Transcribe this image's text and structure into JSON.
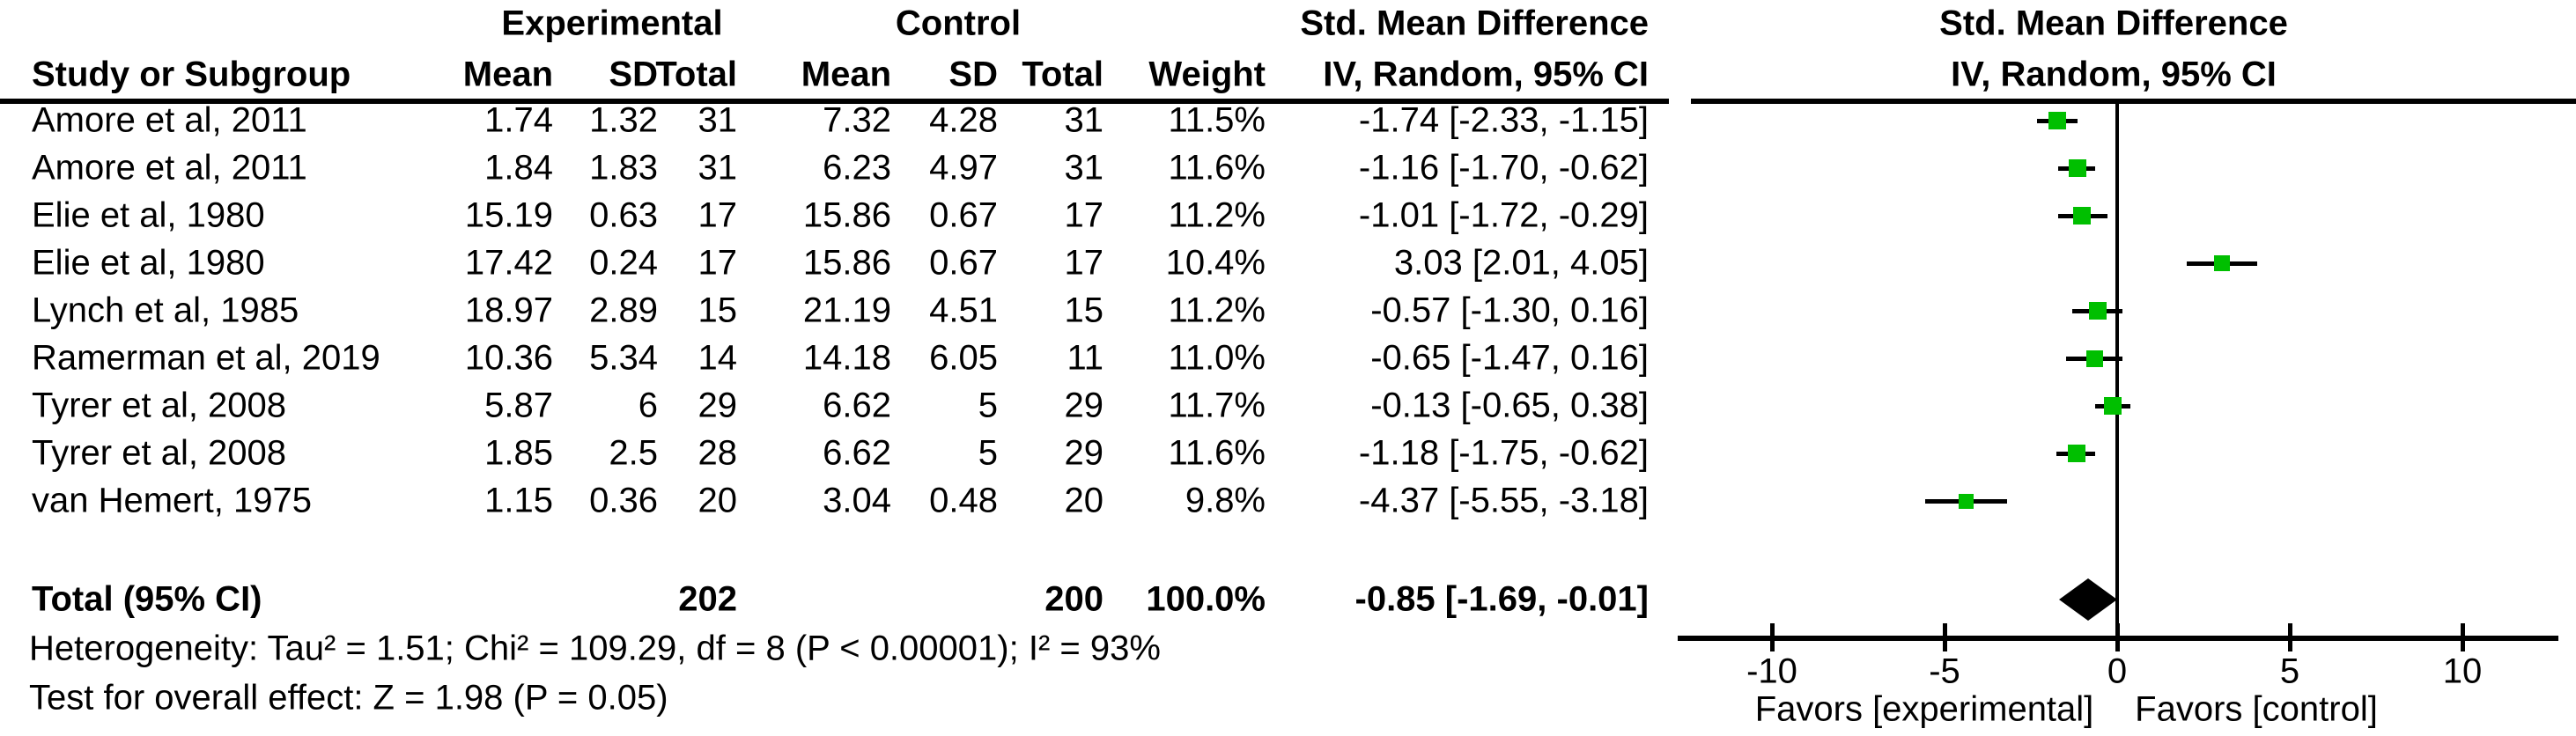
{
  "header": {
    "group_experimental": "Experimental",
    "group_control": "Control",
    "smd_table_title": "Std. Mean Difference",
    "smd_plot_title": "Std. Mean Difference",
    "study_or_subgroup": "Study or Subgroup",
    "exp_mean": "Mean",
    "exp_sd": "SD",
    "exp_total": "Total",
    "ctl_mean": "Mean",
    "ctl_sd": "SD",
    "ctl_total": "Total",
    "weight": "Weight",
    "iv_table": "IV, Random, 95% CI",
    "iv_plot": "IV, Random, 95% CI"
  },
  "chart_data": {
    "type": "forest",
    "effect_measure": "Std. Mean Difference",
    "model": "IV, Random, 95% CI",
    "studies": [
      {
        "name": "Amore et al, 2011",
        "mean_e": "1.74",
        "sd_e": "1.32",
        "n_e": "31",
        "mean_c": "7.32",
        "sd_c": "4.28",
        "n_c": "31",
        "weight": "11.5%",
        "w": 11.5,
        "ci": "-1.74 [-2.33, -1.15]",
        "est": -1.74,
        "lo": -2.33,
        "hi": -1.15
      },
      {
        "name": "Amore et al, 2011",
        "mean_e": "1.84",
        "sd_e": "1.83",
        "n_e": "31",
        "mean_c": "6.23",
        "sd_c": "4.97",
        "n_c": "31",
        "weight": "11.6%",
        "w": 11.6,
        "ci": "-1.16 [-1.70, -0.62]",
        "est": -1.16,
        "lo": -1.7,
        "hi": -0.62
      },
      {
        "name": "Elie et al, 1980",
        "mean_e": "15.19",
        "sd_e": "0.63",
        "n_e": "17",
        "mean_c": "15.86",
        "sd_c": "0.67",
        "n_c": "17",
        "weight": "11.2%",
        "w": 11.2,
        "ci": "-1.01 [-1.72, -0.29]",
        "est": -1.01,
        "lo": -1.72,
        "hi": -0.29
      },
      {
        "name": "Elie et al, 1980",
        "mean_e": "17.42",
        "sd_e": "0.24",
        "n_e": "17",
        "mean_c": "15.86",
        "sd_c": "0.67",
        "n_c": "17",
        "weight": "10.4%",
        "w": 10.4,
        "ci": "3.03 [2.01, 4.05]",
        "est": 3.03,
        "lo": 2.01,
        "hi": 4.05
      },
      {
        "name": "Lynch et al, 1985",
        "mean_e": "18.97",
        "sd_e": "2.89",
        "n_e": "15",
        "mean_c": "21.19",
        "sd_c": "4.51",
        "n_c": "15",
        "weight": "11.2%",
        "w": 11.2,
        "ci": "-0.57 [-1.30, 0.16]",
        "est": -0.57,
        "lo": -1.3,
        "hi": 0.16
      },
      {
        "name": "Ramerman et al, 2019",
        "mean_e": "10.36",
        "sd_e": "5.34",
        "n_e": "14",
        "mean_c": "14.18",
        "sd_c": "6.05",
        "n_c": "11",
        "weight": "11.0%",
        "w": 11.0,
        "ci": "-0.65 [-1.47, 0.16]",
        "est": -0.65,
        "lo": -1.47,
        "hi": 0.16
      },
      {
        "name": "Tyrer et al, 2008",
        "mean_e": "5.87",
        "sd_e": "6",
        "n_e": "29",
        "mean_c": "6.62",
        "sd_c": "5",
        "n_c": "29",
        "weight": "11.7%",
        "w": 11.7,
        "ci": "-0.13 [-0.65, 0.38]",
        "est": -0.13,
        "lo": -0.65,
        "hi": 0.38
      },
      {
        "name": "Tyrer et al, 2008",
        "mean_e": "1.85",
        "sd_e": "2.5",
        "n_e": "28",
        "mean_c": "6.62",
        "sd_c": "5",
        "n_c": "29",
        "weight": "11.6%",
        "w": 11.6,
        "ci": "-1.18 [-1.75, -0.62]",
        "est": -1.18,
        "lo": -1.75,
        "hi": -0.62
      },
      {
        "name": "van Hemert, 1975",
        "mean_e": "1.15",
        "sd_e": "0.36",
        "n_e": "20",
        "mean_c": "3.04",
        "sd_c": "0.48",
        "n_c": "20",
        "weight": "9.8%",
        "w": 9.8,
        "ci": "-4.37 [-5.55, -3.18]",
        "est": -4.37,
        "lo": -5.55,
        "hi": -3.18
      }
    ],
    "total": {
      "label": "Total (95% CI)",
      "n_e": "202",
      "n_c": "200",
      "weight": "100.0%",
      "ci": "-0.85 [-1.69, -0.01]",
      "est": -0.85,
      "lo": -1.69,
      "hi": -0.01
    },
    "heterogeneity": "Heterogeneity: Tau² = 1.51; Chi² = 109.29, df = 8 (P < 0.00001); I² = 93%",
    "overall_effect": "Test for overall effect: Z = 1.98 (P = 0.05)",
    "axis": {
      "ticks": [
        -10,
        -5,
        0,
        5,
        10
      ],
      "xmin": -12.7,
      "xmax": 12.8,
      "favors_left": "Favors [experimental]",
      "favors_right": "Favors [control]"
    },
    "colors": {
      "marker_green": "#00BF00",
      "diamond": "#000000",
      "line": "#000000"
    }
  }
}
